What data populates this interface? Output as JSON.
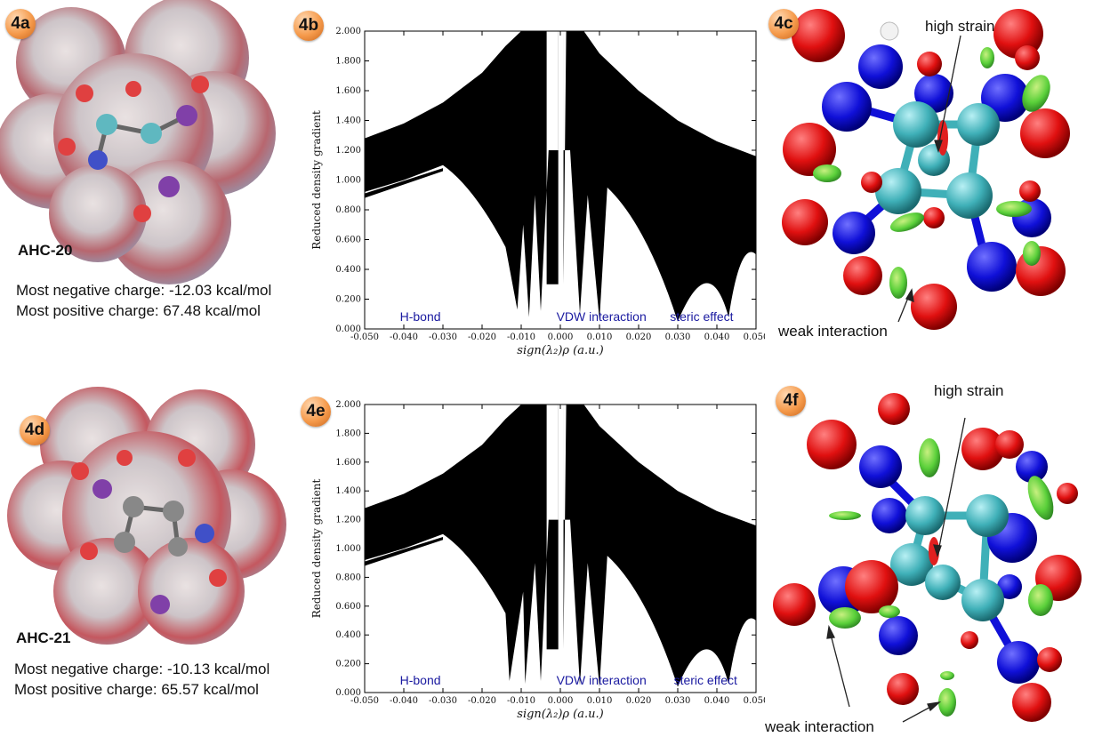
{
  "panels": [
    {
      "id": "4a",
      "badge": "4a",
      "molecule": "AHC-20",
      "charges": [
        "Most negative charge: -12.03 kcal/mol",
        "Most positive charge: 67.48 kcal/mol"
      ]
    },
    {
      "id": "4b",
      "badge": "4b"
    },
    {
      "id": "4c",
      "badge": "4c",
      "annotations": [
        "high strain",
        "weak interaction"
      ]
    },
    {
      "id": "4d",
      "badge": "4d",
      "molecule": "AHC-21",
      "charges": [
        "Most negative charge: -10.13 kcal/mol",
        "Most positive charge: 65.57 kcal/mol"
      ]
    },
    {
      "id": "4e",
      "badge": "4e"
    },
    {
      "id": "4f",
      "badge": "4f",
      "annotations": [
        "high strain",
        "weak interaction"
      ]
    }
  ],
  "colors": {
    "oxygen": "#e01010",
    "nitrogen": "#1010d8",
    "carbon": "#3fb0b8",
    "hydrogen": "#e8e8e8",
    "isosurface": "#5ad03a",
    "region_label": "#1a1aa0",
    "badge": "#f59a4b"
  },
  "chart_data": [
    {
      "type": "scatter",
      "panel": "4b",
      "title": "",
      "xlabel": "sign(λ₂)ρ (a.u.)",
      "ylabel": "Reduced density gradient",
      "xlim": [
        -0.05,
        0.05
      ],
      "ylim": [
        0,
        2.0
      ],
      "xticks": [
        "-0.050",
        "-0.040",
        "-0.030",
        "-0.020",
        "-0.010",
        "0.000",
        "0.010",
        "0.020",
        "0.030",
        "0.040",
        "0.050"
      ],
      "yticks": [
        "0.000",
        "0.200",
        "0.400",
        "0.600",
        "0.800",
        "1.000",
        "1.200",
        "1.400",
        "1.600",
        "1.800",
        "2.000"
      ],
      "grid": false,
      "regions": [
        {
          "label": "H-bond",
          "x": -0.041
        },
        {
          "label": "VDW interaction",
          "x": -0.001
        },
        {
          "label": "steric effect",
          "x": 0.028
        }
      ],
      "spikes": [
        {
          "x": -0.011,
          "min": 0.13
        },
        {
          "x": -0.008,
          "min": 0.08
        },
        {
          "x": -0.005,
          "min": 0.12
        },
        {
          "x": 0.005,
          "min": 0.1
        },
        {
          "x": 0.01,
          "min": 0.06
        },
        {
          "x": 0.03,
          "min": 0.05
        },
        {
          "x": 0.043,
          "min": 0.08
        }
      ],
      "upper_edge": [
        [
          -0.05,
          1.28
        ],
        [
          -0.04,
          1.38
        ],
        [
          -0.03,
          1.52
        ],
        [
          -0.02,
          1.72
        ],
        [
          -0.014,
          1.9
        ],
        [
          -0.01,
          2.0
        ]
      ],
      "upper_edge_right": [
        [
          0.006,
          2.0
        ],
        [
          0.01,
          1.85
        ],
        [
          0.02,
          1.6
        ],
        [
          0.03,
          1.4
        ],
        [
          0.04,
          1.26
        ],
        [
          0.05,
          1.16
        ]
      ]
    },
    {
      "type": "scatter",
      "panel": "4e",
      "title": "",
      "xlabel": "sign(λ₂)ρ (a.u.)",
      "ylabel": "Reduced density gradient",
      "xlim": [
        -0.05,
        0.05
      ],
      "ylim": [
        0,
        2.0
      ],
      "xticks": [
        "-0.050",
        "-0.040",
        "-0.030",
        "-0.020",
        "-0.010",
        "0.000",
        "0.010",
        "0.020",
        "0.030",
        "0.040",
        "0.050"
      ],
      "yticks": [
        "0.000",
        "0.200",
        "0.400",
        "0.600",
        "0.800",
        "1.000",
        "1.200",
        "1.400",
        "1.600",
        "1.800",
        "2.000"
      ],
      "grid": false,
      "regions": [
        {
          "label": "H-bond",
          "x": -0.041
        },
        {
          "label": "VDW interaction",
          "x": -0.001
        },
        {
          "label": "steric effect",
          "x": 0.029
        }
      ],
      "spikes": [
        {
          "x": -0.013,
          "min": 0.08
        },
        {
          "x": -0.009,
          "min": 0.06
        },
        {
          "x": -0.005,
          "min": 0.08
        },
        {
          "x": 0.005,
          "min": 0.05
        },
        {
          "x": 0.01,
          "min": 0.04
        },
        {
          "x": 0.031,
          "min": 0.04
        },
        {
          "x": 0.043,
          "min": 0.06
        }
      ],
      "upper_edge": [
        [
          -0.05,
          1.28
        ],
        [
          -0.04,
          1.38
        ],
        [
          -0.03,
          1.52
        ],
        [
          -0.02,
          1.72
        ],
        [
          -0.014,
          1.9
        ],
        [
          -0.01,
          2.0
        ]
      ],
      "upper_edge_right": [
        [
          0.006,
          2.0
        ],
        [
          0.01,
          1.85
        ],
        [
          0.02,
          1.6
        ],
        [
          0.03,
          1.4
        ],
        [
          0.04,
          1.26
        ],
        [
          0.05,
          1.16
        ]
      ]
    }
  ]
}
